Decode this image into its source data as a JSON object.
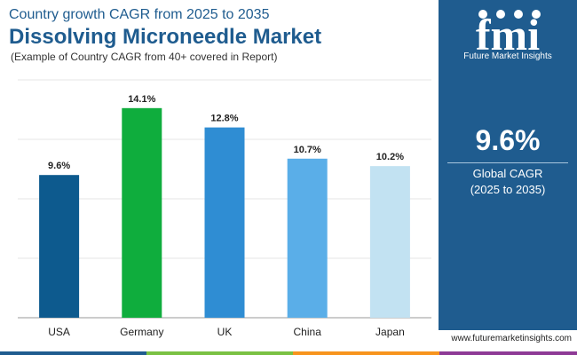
{
  "header": {
    "title_top": "Country growth CAGR from 2025 to 2035",
    "title_main": "Dissolving Microneedle Market",
    "subtitle": "(Example of Country CAGR from 40+ covered in Report)"
  },
  "side_panel": {
    "brand_text": "Future Market Insights",
    "logo_mark": "fmi",
    "big_value": "9.6%",
    "label": "Global CAGR",
    "period": "(2025 to 2035)"
  },
  "footer": {
    "website": "www.futuremarketinsights.com"
  },
  "colors": {
    "brand_blue": "#1f5c8f",
    "bottom_bar": [
      "#1f5c8f",
      "#7ac143",
      "#f7941d",
      "#8e3a96"
    ]
  },
  "chart_data": {
    "type": "bar",
    "categories": [
      "USA",
      "Germany",
      "UK",
      "China",
      "Japan"
    ],
    "values": [
      9.6,
      14.1,
      12.8,
      10.7,
      10.2
    ],
    "labels": [
      "9.6%",
      "14.1%",
      "12.8%",
      "10.7%",
      "10.2%"
    ],
    "colors": [
      "#0d5a8e",
      "#0fad3d",
      "#2f8dd3",
      "#5aaee8",
      "#c2e2f2"
    ],
    "ylim": [
      0,
      16
    ],
    "grid": true,
    "xlabel": "",
    "ylabel": ""
  }
}
